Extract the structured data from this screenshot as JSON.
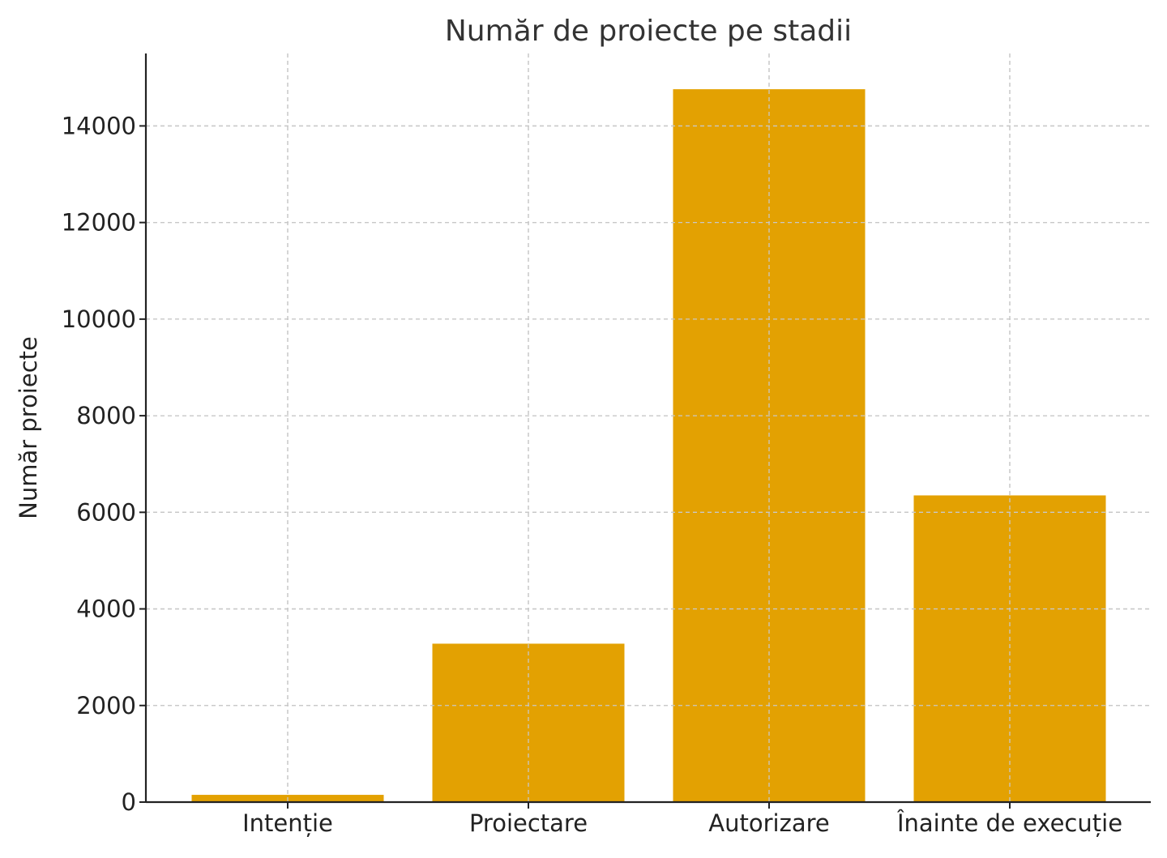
{
  "chart_data": {
    "type": "bar",
    "title": "Număr de proiecte pe stadii",
    "xlabel": "",
    "ylabel": "Număr proiecte",
    "categories": [
      "Intenție",
      "Proiectare",
      "Autorizare",
      "Înainte de execuție"
    ],
    "values": [
      150,
      3280,
      14760,
      6350
    ],
    "ylim": [
      0,
      15500
    ],
    "yticks": [
      0,
      2000,
      4000,
      6000,
      8000,
      10000,
      12000,
      14000
    ],
    "ytick_labels": [
      "0",
      "2000",
      "4000",
      "6000",
      "8000",
      "10000",
      "12000",
      "14000"
    ],
    "grid": true,
    "bar_color": "#E3A102"
  }
}
